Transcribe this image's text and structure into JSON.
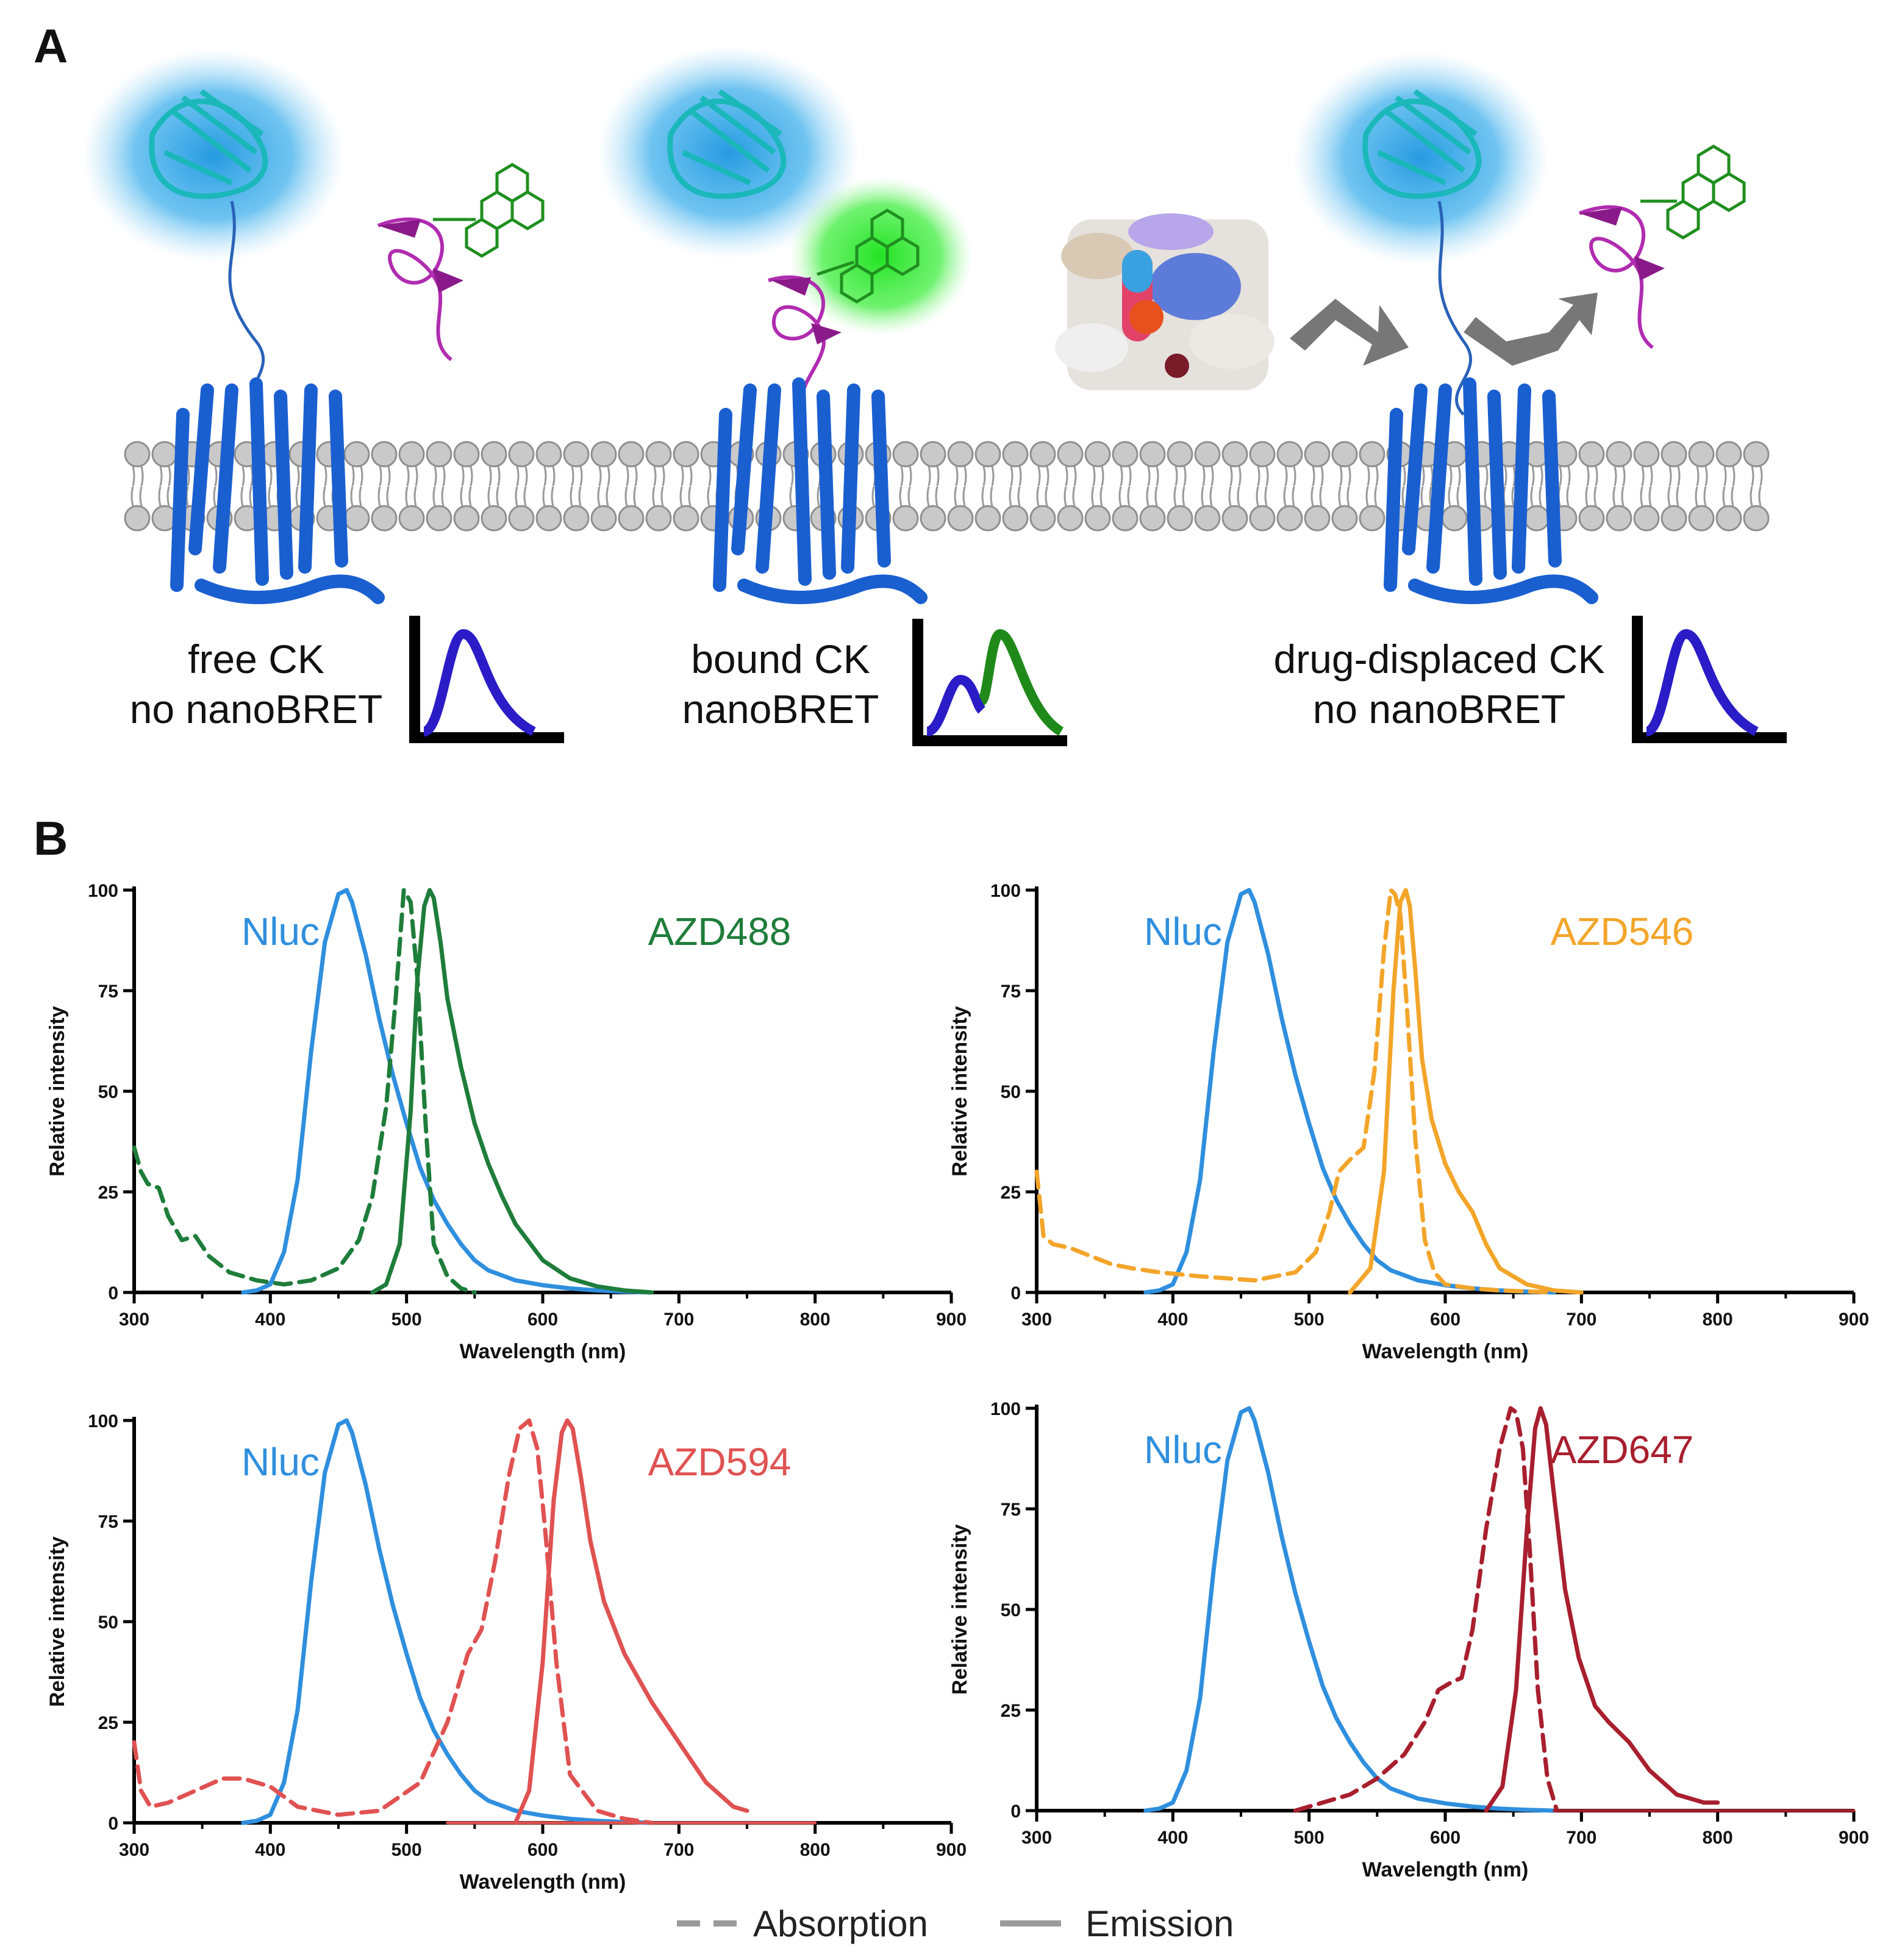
{
  "panel_a": {
    "letter": "A",
    "states": [
      {
        "caption": "free CK\nno nanoBRET",
        "spectrum": "donor-only"
      },
      {
        "caption": "bound CK\nnanoBRET",
        "spectrum": "donor-acceptor"
      },
      {
        "caption": "drug-displaced CK\nno nanoBRET",
        "spectrum": "donor-only"
      }
    ],
    "colors": {
      "donor_glow": "#2aa7e8",
      "acceptor_glow": "#2ee82e",
      "receptor": "#1a5fd0",
      "peptide": "#9b1d9b",
      "ligand": "#1f8f1f",
      "donor_peak": "#2a1dc7",
      "acceptor_peak": "#1f8a1a",
      "arrow": "#777777",
      "membrane": "#bdbdbd"
    }
  },
  "panel_b": {
    "letter": "B",
    "legend": {
      "absorption": "Absorption",
      "emission": "Emission",
      "color": "#9a9a9a"
    }
  },
  "chart_data": [
    {
      "type": "line",
      "xlabel": "Wavelength (nm)",
      "ylabel": "Relative intensity",
      "xlim": [
        300,
        900
      ],
      "ylim": [
        0,
        100
      ],
      "xticks": [
        "300",
        "400",
        "500",
        "600",
        "700",
        "800",
        "900"
      ],
      "yticks": [
        "0",
        "25",
        "50",
        "75",
        "100"
      ],
      "labels": [
        {
          "text": "Nluc",
          "color": "#2f8fde"
        },
        {
          "text": "AZD488",
          "color": "#1e7d3a"
        }
      ],
      "series": [
        {
          "name": "Nluc",
          "style": "solid",
          "color": "#2f8fde",
          "x": [
            380,
            390,
            400,
            410,
            420,
            430,
            440,
            450,
            456,
            460,
            470,
            480,
            490,
            500,
            510,
            520,
            530,
            540,
            550,
            560,
            580,
            600,
            620,
            640,
            660,
            680
          ],
          "y": [
            0,
            0.5,
            2,
            10,
            28,
            60,
            87,
            99,
            100,
            97,
            84,
            68,
            54,
            42,
            31,
            23,
            17,
            12,
            8,
            5.5,
            3,
            1.8,
            1,
            0.5,
            0.2,
            0
          ]
        },
        {
          "name": "AZD488",
          "style": "dashed",
          "color": "#1e7d3a",
          "x": [
            300,
            305,
            310,
            318,
            325,
            335,
            345,
            355,
            370,
            390,
            410,
            430,
            450,
            465,
            475,
            485,
            492,
            498,
            503,
            508,
            514,
            520,
            530,
            540,
            550
          ],
          "y": [
            36,
            30,
            27,
            26,
            19,
            13,
            14,
            9,
            5,
            3,
            2,
            3,
            6,
            13,
            24,
            46,
            73,
            100,
            97,
            78,
            42,
            12,
            4,
            1,
            0
          ]
        },
        {
          "name": "AZD488",
          "style": "solid",
          "color": "#1e7d3a",
          "x": [
            475,
            485,
            495,
            503,
            508,
            513,
            517,
            520,
            525,
            530,
            540,
            550,
            560,
            570,
            580,
            600,
            620,
            640,
            660,
            680
          ],
          "y": [
            0,
            2,
            12,
            45,
            78,
            96,
            100,
            98,
            87,
            73,
            56,
            42,
            32,
            24,
            17,
            8,
            3.5,
            1.5,
            0.5,
            0
          ]
        }
      ]
    },
    {
      "type": "line",
      "xlabel": "Wavelength (nm)",
      "ylabel": "Relative intensity",
      "xlim": [
        300,
        900
      ],
      "ylim": [
        0,
        100
      ],
      "xticks": [
        "300",
        "400",
        "500",
        "600",
        "700",
        "800",
        "900"
      ],
      "yticks": [
        "0",
        "25",
        "50",
        "75",
        "100"
      ],
      "labels": [
        {
          "text": "Nluc",
          "color": "#2f8fde"
        },
        {
          "text": "AZD546",
          "color": "#f3a52a"
        }
      ],
      "series": [
        {
          "name": "Nluc",
          "style": "solid",
          "color": "#2f8fde",
          "x": [
            380,
            390,
            400,
            410,
            420,
            430,
            440,
            450,
            456,
            460,
            470,
            480,
            490,
            500,
            510,
            520,
            530,
            540,
            550,
            560,
            580,
            600,
            620,
            640,
            660,
            680
          ],
          "y": [
            0,
            0.5,
            2,
            10,
            28,
            60,
            87,
            99,
            100,
            97,
            84,
            68,
            54,
            42,
            31,
            23,
            17,
            12,
            8,
            5.5,
            3,
            1.8,
            1,
            0.5,
            0.2,
            0
          ]
        },
        {
          "name": "AZD546",
          "style": "dashed",
          "color": "#f3a52a",
          "x": [
            300,
            305,
            312,
            325,
            340,
            355,
            370,
            390,
            420,
            460,
            490,
            505,
            515,
            522,
            530,
            540,
            548,
            555,
            560,
            563,
            567,
            572,
            578,
            585,
            592,
            600,
            620,
            640,
            680
          ],
          "y": [
            30,
            14,
            12,
            11,
            9,
            7,
            6,
            5,
            4,
            3,
            5,
            10,
            20,
            30,
            33,
            36,
            55,
            85,
            100,
            99,
            94,
            70,
            38,
            13,
            5,
            2,
            1,
            0.5,
            0
          ]
        },
        {
          "name": "AZD546",
          "style": "solid",
          "color": "#f3a52a",
          "x": [
            530,
            545,
            555,
            562,
            567,
            571,
            574,
            578,
            583,
            590,
            600,
            610,
            620,
            630,
            640,
            660,
            680,
            700
          ],
          "y": [
            0,
            6,
            30,
            75,
            97,
            100,
            96,
            80,
            58,
            43,
            32,
            25,
            20,
            12,
            6,
            2,
            0.5,
            0
          ]
        }
      ]
    },
    {
      "type": "line",
      "xlabel": "Wavelength (nm)",
      "ylabel": "Relative intensity",
      "xlim": [
        300,
        900
      ],
      "ylim": [
        0,
        100
      ],
      "xticks": [
        "300",
        "400",
        "500",
        "600",
        "700",
        "800",
        "900"
      ],
      "yticks": [
        "0",
        "25",
        "50",
        "75",
        "100"
      ],
      "labels": [
        {
          "text": "Nluc",
          "color": "#2f8fde"
        },
        {
          "text": "AZD594",
          "color": "#e05252"
        }
      ],
      "series": [
        {
          "name": "Nluc",
          "style": "solid",
          "color": "#2f8fde",
          "x": [
            380,
            390,
            400,
            410,
            420,
            430,
            440,
            450,
            456,
            460,
            470,
            480,
            490,
            500,
            510,
            520,
            530,
            540,
            550,
            560,
            580,
            600,
            620,
            640,
            660,
            680
          ],
          "y": [
            0,
            0.5,
            2,
            10,
            28,
            60,
            87,
            99,
            100,
            97,
            84,
            68,
            54,
            42,
            31,
            23,
            17,
            12,
            8,
            5.5,
            3,
            1.8,
            1,
            0.5,
            0.2,
            0
          ]
        },
        {
          "name": "AZD594",
          "style": "dashed",
          "color": "#e05252",
          "x": [
            300,
            305,
            312,
            325,
            345,
            365,
            380,
            400,
            420,
            450,
            480,
            510,
            530,
            545,
            555,
            565,
            575,
            583,
            590,
            596,
            602,
            610,
            620,
            640,
            660,
            680
          ],
          "y": [
            20,
            8,
            4,
            5,
            8,
            11,
            11,
            9,
            4,
            2,
            3,
            10,
            25,
            42,
            48,
            65,
            86,
            98,
            100,
            93,
            72,
            40,
            12,
            3,
            1,
            0
          ]
        },
        {
          "name": "AZD594",
          "style": "solid",
          "color": "#e05252",
          "x": [
            580,
            590,
            600,
            608,
            614,
            618,
            622,
            628,
            635,
            645,
            660,
            680,
            700,
            720,
            740,
            750
          ],
          "y": [
            0,
            8,
            40,
            80,
            97,
            100,
            98,
            86,
            70,
            55,
            42,
            30,
            20,
            10,
            4,
            3
          ]
        },
        {
          "name": "AZD594",
          "style": "baseline",
          "color": "#e05252",
          "x": [
            530,
            580,
            750,
            800
          ],
          "y": [
            0,
            0,
            0,
            0
          ]
        }
      ]
    },
    {
      "type": "line",
      "xlabel": "Wavelength (nm)",
      "ylabel": "Relative intensity",
      "xlim": [
        300,
        900
      ],
      "ylim": [
        0,
        100
      ],
      "xticks": [
        "300",
        "400",
        "500",
        "600",
        "700",
        "800",
        "900"
      ],
      "yticks": [
        "0",
        "25",
        "50",
        "75",
        "100"
      ],
      "labels": [
        {
          "text": "Nluc",
          "color": "#2f8fde"
        },
        {
          "text": "AZD647",
          "color": "#a81f2e"
        }
      ],
      "series": [
        {
          "name": "Nluc",
          "style": "solid",
          "color": "#2f8fde",
          "x": [
            380,
            390,
            400,
            410,
            420,
            430,
            440,
            450,
            456,
            460,
            470,
            480,
            490,
            500,
            510,
            520,
            530,
            540,
            550,
            560,
            580,
            600,
            620,
            640,
            660,
            680
          ],
          "y": [
            0,
            0.5,
            2,
            10,
            28,
            60,
            87,
            99,
            100,
            97,
            84,
            68,
            54,
            42,
            31,
            23,
            17,
            12,
            8,
            5.5,
            3,
            1.8,
            1,
            0.5,
            0.2,
            0
          ]
        },
        {
          "name": "AZD647",
          "style": "dashed",
          "color": "#a81f2e",
          "x": [
            490,
            510,
            530,
            550,
            570,
            585,
            595,
            605,
            612,
            620,
            630,
            640,
            648,
            652,
            657,
            662,
            668,
            675,
            682
          ],
          "y": [
            0,
            2,
            4,
            8,
            14,
            22,
            30,
            32,
            33,
            45,
            70,
            90,
            100,
            99,
            90,
            65,
            30,
            8,
            0
          ]
        },
        {
          "name": "AZD647",
          "style": "solid",
          "color": "#a81f2e",
          "x": [
            630,
            642,
            652,
            660,
            666,
            670,
            674,
            680,
            688,
            698,
            710,
            720,
            735,
            750,
            770,
            790,
            800
          ],
          "y": [
            0,
            6,
            30,
            70,
            95,
            100,
            96,
            78,
            55,
            38,
            26,
            22,
            17,
            10,
            4,
            2,
            2
          ]
        },
        {
          "name": "AZD647",
          "style": "baseline",
          "color": "#a81f2e",
          "x": [
            680,
            800,
            900
          ],
          "y": [
            0,
            0,
            0
          ]
        }
      ]
    }
  ]
}
